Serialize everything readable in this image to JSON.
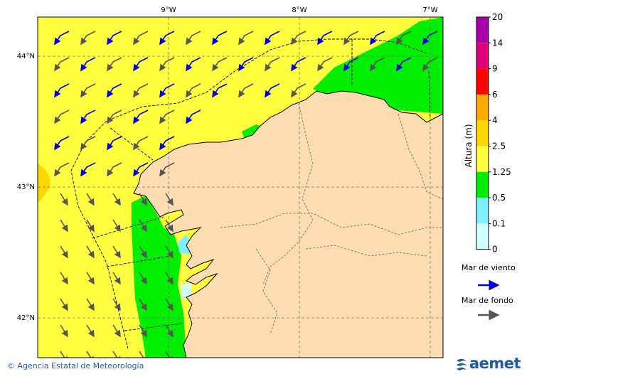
{
  "map": {
    "lon_labels": [
      "9°W",
      "8°W",
      "7°W"
    ],
    "lat_labels": [
      "44°N",
      "43°N",
      "42°N"
    ]
  },
  "colorbar": {
    "title": "Altura (m)",
    "levels": [
      "20",
      "14",
      "9",
      "6",
      "4",
      "2.5",
      "1.25",
      "0.5",
      "0.1",
      "0"
    ],
    "colors": [
      "#aa00aa",
      "#e0007a",
      "#ff0000",
      "#ffaa00",
      "#ffd700",
      "#ffff40",
      "#00ee00",
      "#80f0ff",
      "#d0ffff"
    ]
  },
  "legend": {
    "wind_sea_label": "Mar de viento",
    "swell_label": "Mar de fondo",
    "wind_sea_color": "#0000dd",
    "swell_color": "#555555"
  },
  "colors": {
    "sea_yellow": "#ffff40",
    "green": "#00ee00",
    "land": "#fcdcb0",
    "orange": "#ffd700"
  },
  "footer": {
    "credit": "© Agencia Estatal de Meteorología",
    "logo_text": "aemet"
  }
}
